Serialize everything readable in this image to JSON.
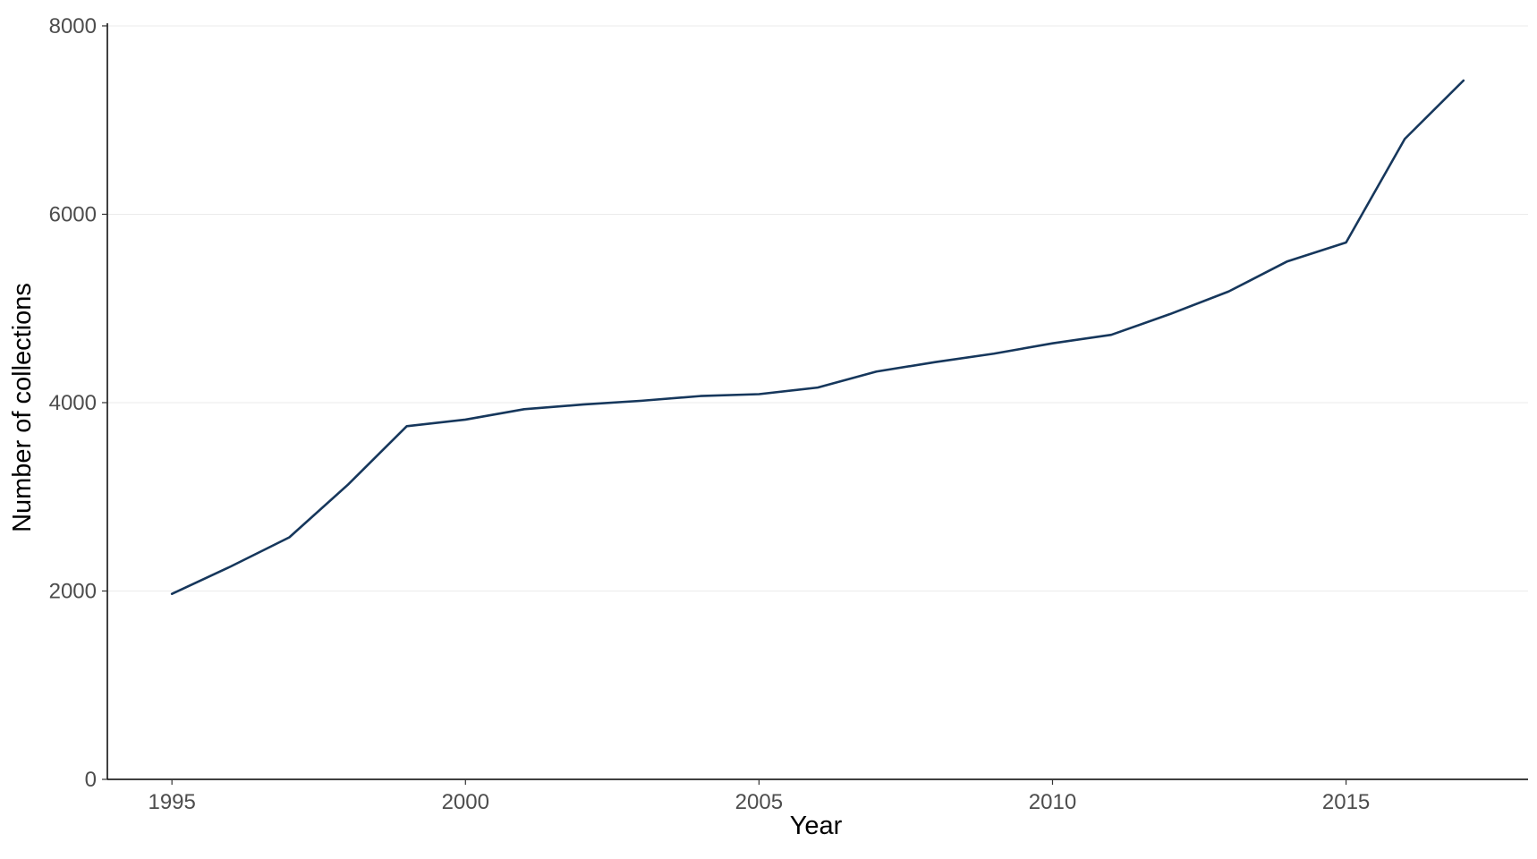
{
  "chart_data": {
    "type": "line",
    "title": "",
    "xlabel": "Year",
    "ylabel": "Number of collections",
    "xlim": [
      1993.9,
      2018.1
    ],
    "ylim": [
      0,
      8000
    ],
    "x_ticks": [
      1995,
      2000,
      2005,
      2010,
      2015
    ],
    "y_ticks": [
      0,
      2000,
      4000,
      6000,
      8000
    ],
    "grid": "horizontal major, light",
    "legend": "none",
    "line_color": "#16375c",
    "series": [
      {
        "x": [
          1995,
          1996,
          1997,
          1998,
          1999,
          2000,
          2001,
          2002,
          2003,
          2004,
          2005,
          2006,
          2007,
          2008,
          2009,
          2010,
          2011,
          2012,
          2013,
          2014,
          2015,
          2016,
          2017
        ],
        "values": [
          1970,
          2260,
          2570,
          3130,
          3750,
          3820,
          3930,
          3980,
          4020,
          4070,
          4090,
          4160,
          4330,
          4430,
          4520,
          4630,
          4720,
          4940,
          5180,
          5500,
          5700,
          6800,
          7420
        ]
      }
    ]
  }
}
